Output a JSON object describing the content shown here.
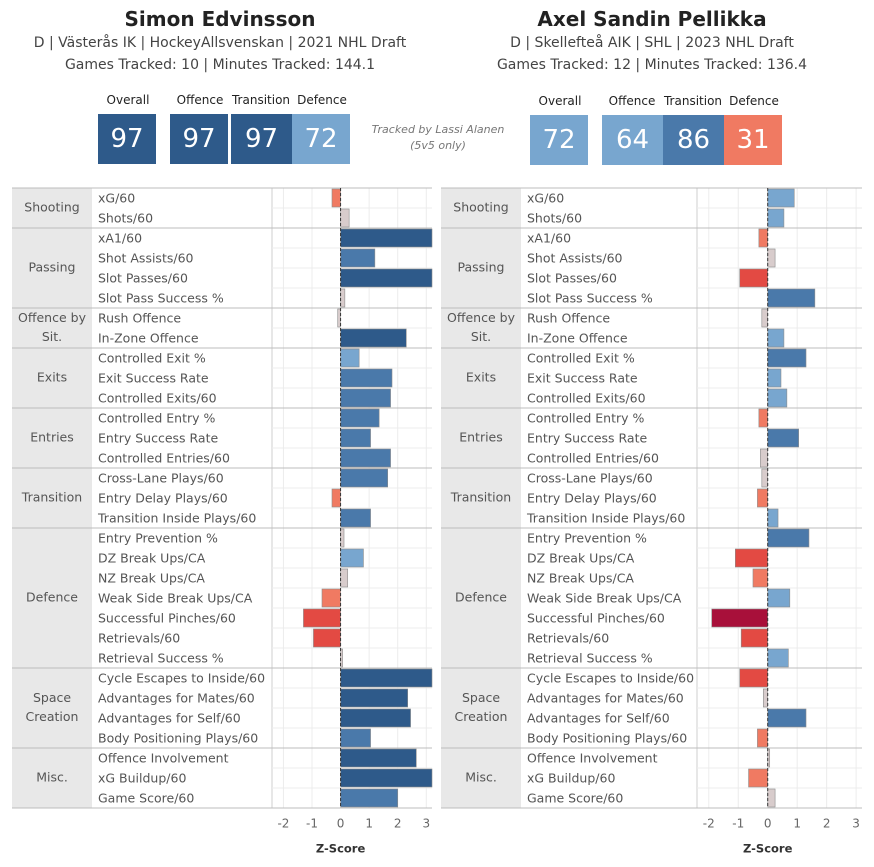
{
  "players": [
    {
      "name": "Simon Edvinsson",
      "info1": "D | Västerås IK | HockeyAllsvenskan | 2021 NHL Draft",
      "info2": "Games Tracked: 10 | Minutes Tracked: 144.1",
      "ratings": [
        {
          "label": "Overall",
          "value": "97",
          "color": "#2e5a8a"
        },
        {
          "label": "Offence",
          "value": "97",
          "color": "#2e5a8a"
        },
        {
          "label": "Transition",
          "value": "97",
          "color": "#2e5a8a"
        },
        {
          "label": "Defence",
          "value": "72",
          "color": "#78a6cf"
        }
      ]
    },
    {
      "name": "Axel Sandin Pellikka",
      "info1": "D | Skellefteå AIK | SHL | 2023 NHL Draft",
      "info2": "Games Tracked: 12 | Minutes Tracked: 136.4",
      "ratings": [
        {
          "label": "Overall",
          "value": "72",
          "color": "#78a6cf"
        },
        {
          "label": "Offence",
          "value": "64",
          "color": "#78a6cf"
        },
        {
          "label": "Transition",
          "value": "86",
          "color": "#4a79aa"
        },
        {
          "label": "Defence",
          "value": "31",
          "color": "#f07a62"
        }
      ]
    }
  ],
  "note": {
    "line1": "Tracked by Lassi Alanen",
    "line2": "(5v5 only)"
  },
  "chart_data": {
    "type": "bar",
    "orientation": "horizontal",
    "xlabel": "Z-Score",
    "xlim": [
      -2.4,
      3.2
    ],
    "ticks": [
      -2,
      -1,
      0,
      1,
      2,
      3
    ],
    "groups": [
      {
        "name": "Shooting",
        "metrics": [
          "xG/60",
          "Shots/60"
        ]
      },
      {
        "name": "Passing",
        "metrics": [
          "xA1/60",
          "Shot Assists/60",
          "Slot Passes/60",
          "Slot Pass Success %"
        ]
      },
      {
        "name": "Offence by Sit.",
        "metrics": [
          "Rush Offence",
          "In-Zone Offence"
        ]
      },
      {
        "name": "Exits",
        "metrics": [
          "Controlled Exit %",
          "Exit Success Rate",
          "Controlled Exits/60"
        ]
      },
      {
        "name": "Entries",
        "metrics": [
          "Controlled Entry %",
          "Entry Success Rate",
          "Controlled Entries/60"
        ]
      },
      {
        "name": "Transition",
        "metrics": [
          "Cross-Lane Plays/60",
          "Entry Delay Plays/60",
          "Transition Inside Plays/60"
        ]
      },
      {
        "name": "Defence",
        "metrics": [
          "Entry Prevention %",
          "DZ Break Ups/CA",
          "NZ Break Ups/CA",
          "Weak Side Break Ups/CA",
          "Successful Pinches/60",
          "Retrievals/60",
          "Retrieval Success %"
        ]
      },
      {
        "name": "Space Creation",
        "metrics": [
          "Cycle Escapes to Inside/60",
          "Advantages for Mates/60",
          "Advantages for Self/60",
          "Body Positioning Plays/60"
        ]
      },
      {
        "name": "Misc.",
        "metrics": [
          "Offence Involvement",
          "xG Buildup/60",
          "Game Score/60"
        ]
      }
    ],
    "series": [
      {
        "name": "Simon Edvinsson",
        "values": [
          -0.3,
          0.3,
          3.2,
          1.2,
          3.2,
          0.15,
          -0.1,
          2.3,
          0.65,
          1.8,
          1.75,
          1.35,
          1.05,
          1.75,
          1.65,
          -0.3,
          1.05,
          0.12,
          0.8,
          0.25,
          -0.65,
          -1.3,
          -0.95,
          0.05,
          3.2,
          2.35,
          2.45,
          1.05,
          2.65,
          3.2,
          2.0
        ]
      },
      {
        "name": "Axel Sandin Pellikka",
        "values": [
          0.9,
          0.55,
          -0.3,
          0.25,
          -0.95,
          1.6,
          -0.2,
          0.55,
          1.3,
          0.45,
          0.65,
          -0.3,
          1.05,
          -0.25,
          -0.2,
          -0.35,
          0.35,
          1.4,
          -1.1,
          -0.5,
          0.75,
          -1.9,
          -0.9,
          0.7,
          -0.95,
          -0.15,
          1.3,
          -0.35,
          0.05,
          -0.65,
          0.25
        ]
      }
    ]
  }
}
